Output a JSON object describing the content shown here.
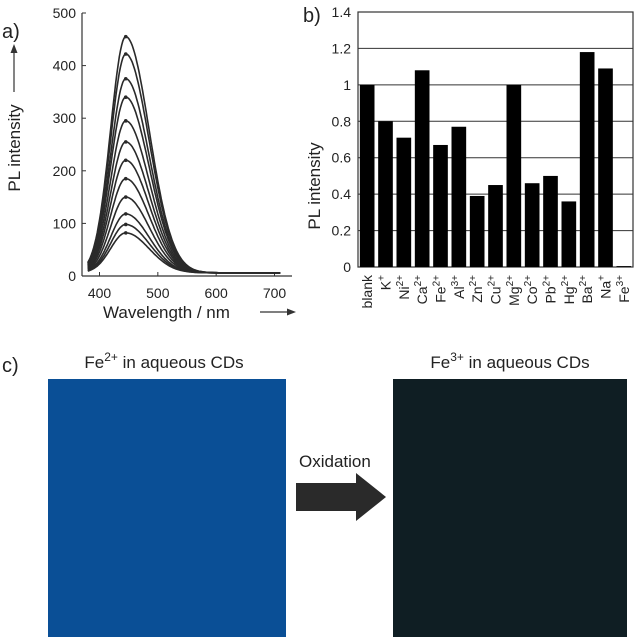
{
  "panels": {
    "a": "a)",
    "b": "b)",
    "c": "c)"
  },
  "chart_data": [
    {
      "type": "line",
      "xlabel": "Wavelength / nm",
      "ylabel": "PL intensity",
      "xlim": [
        370,
        730
      ],
      "ylim": [
        0,
        500
      ],
      "x_ticks": [
        400,
        500,
        600,
        700
      ],
      "y_ticks": [
        0,
        100,
        200,
        300,
        400,
        500
      ],
      "peak_x": 445,
      "x_start": 380,
      "x_end": 710,
      "series": [
        {
          "peak": 455
        },
        {
          "peak": 422
        },
        {
          "peak": 375
        },
        {
          "peak": 340
        },
        {
          "peak": 295
        },
        {
          "peak": 255
        },
        {
          "peak": 220
        },
        {
          "peak": 185
        },
        {
          "peak": 150
        },
        {
          "peak": 118
        },
        {
          "peak": 98
        },
        {
          "peak": 82
        }
      ],
      "grid": false
    },
    {
      "type": "bar",
      "ylabel": "PL intensity",
      "ylim": [
        0,
        1.4
      ],
      "y_ticks": [
        "0",
        "0.2",
        "0.4",
        "0.6",
        "0.8",
        "1",
        "1.2",
        "1.4"
      ],
      "categories": [
        {
          "base": "blank",
          "sup": ""
        },
        {
          "base": "K",
          "sup": "+"
        },
        {
          "base": "Ni",
          "sup": "2+"
        },
        {
          "base": "Ca",
          "sup": "2+"
        },
        {
          "base": "Fe",
          "sup": "2+"
        },
        {
          "base": "Al",
          "sup": "3+"
        },
        {
          "base": "Zn",
          "sup": "2+"
        },
        {
          "base": "Cu",
          "sup": "2+"
        },
        {
          "base": "Mg",
          "sup": "2+"
        },
        {
          "base": "Co",
          "sup": "2+"
        },
        {
          "base": "Pb",
          "sup": "2+"
        },
        {
          "base": "Hg",
          "sup": "2+"
        },
        {
          "base": "Ba",
          "sup": "2+"
        },
        {
          "base": "Na",
          "sup": "+"
        },
        {
          "base": "Fe",
          "sup": "3+"
        }
      ],
      "values": [
        1.0,
        0.8,
        0.71,
        1.08,
        0.67,
        0.77,
        0.39,
        0.45,
        1.0,
        0.46,
        0.5,
        0.36,
        1.18,
        1.09,
        0.005
      ],
      "grid": true
    }
  ],
  "photos": {
    "left_caption_base": "Fe",
    "left_caption_sup": "2+",
    "left_caption_rest": " in aqueous CDs",
    "right_caption_base": "Fe",
    "right_caption_sup": "3+",
    "right_caption_rest": " in aqueous CDs",
    "arrow_label": "Oxidation",
    "left_color": "#0a4f96",
    "right_color": "#0f1e23",
    "arrow_color": "#2a2a2a"
  }
}
